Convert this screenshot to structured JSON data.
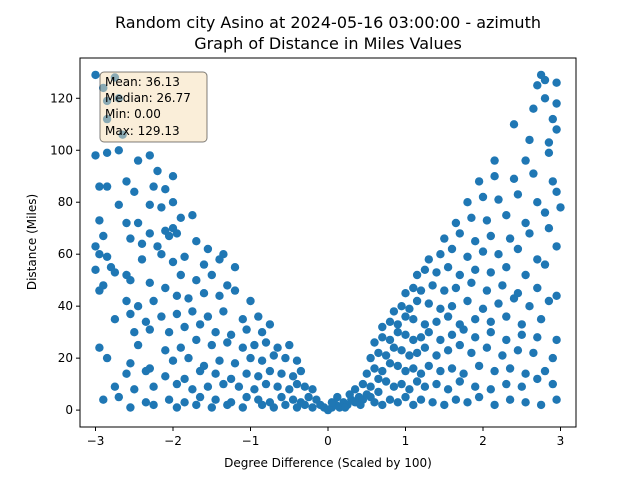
{
  "chart_data": {
    "type": "scatter",
    "title_line1": "Random city Asino at 2024-05-16 03:00:00  - azimuth",
    "title_line2": "Graph of Distance in Miles Values",
    "xlabel": "Degree Difference (Scaled by 100)",
    "ylabel": "Distance (Miles)",
    "xlim": [
      -3.2,
      3.2
    ],
    "ylim": [
      -6.5,
      135.5
    ],
    "xticks": [
      -3,
      -2,
      -1,
      0,
      1,
      2,
      3
    ],
    "yticks": [
      0,
      20,
      40,
      60,
      80,
      100,
      120
    ],
    "grid": false,
    "marker_color": "#1f77b4",
    "stats": {
      "mean": "Mean: 36.13",
      "median": "Median: 26.77",
      "min": "Min: 0.00",
      "max": "Max: 129.13"
    },
    "points": [
      [
        -3.0,
        129
      ],
      [
        -2.9,
        124
      ],
      [
        -2.85,
        119
      ],
      [
        -2.75,
        128
      ],
      [
        -2.7,
        120
      ],
      [
        -2.85,
        112
      ],
      [
        -2.65,
        106
      ],
      [
        -3.0,
        98
      ],
      [
        -2.85,
        99
      ],
      [
        -2.7,
        100
      ],
      [
        -2.45,
        96
      ],
      [
        -2.3,
        98
      ],
      [
        -2.2,
        92
      ],
      [
        -2.0,
        90
      ],
      [
        -2.95,
        86
      ],
      [
        -2.85,
        86
      ],
      [
        -2.6,
        88
      ],
      [
        -2.5,
        84
      ],
      [
        -2.25,
        86
      ],
      [
        -2.1,
        85
      ],
      [
        -2.0,
        80
      ],
      [
        -2.3,
        79
      ],
      [
        -2.15,
        78
      ],
      [
        -2.7,
        79
      ],
      [
        -2.95,
        73
      ],
      [
        -2.6,
        72
      ],
      [
        -2.45,
        72
      ],
      [
        -2.3,
        68
      ],
      [
        -2.1,
        69
      ],
      [
        -2.0,
        70
      ],
      [
        -1.9,
        74
      ],
      [
        -1.75,
        75
      ],
      [
        -2.9,
        67
      ],
      [
        -2.55,
        66
      ],
      [
        -2.4,
        64
      ],
      [
        -2.2,
        63
      ],
      [
        -2.05,
        67
      ],
      [
        -1.95,
        68
      ],
      [
        -1.7,
        65
      ],
      [
        -1.55,
        62
      ],
      [
        -1.35,
        60
      ],
      [
        -3.0,
        63
      ],
      [
        -2.95,
        60
      ],
      [
        -2.85,
        59
      ],
      [
        -2.8,
        55
      ],
      [
        -2.6,
        52
      ],
      [
        -2.4,
        58
      ],
      [
        -2.15,
        60
      ],
      [
        -2.0,
        57
      ],
      [
        -1.85,
        59
      ],
      [
        -1.6,
        56
      ],
      [
        -1.4,
        58
      ],
      [
        -1.2,
        55
      ],
      [
        -3.0,
        54
      ],
      [
        -2.9,
        48
      ],
      [
        -2.75,
        53
      ],
      [
        -2.55,
        50
      ],
      [
        -2.3,
        49
      ],
      [
        -2.1,
        47
      ],
      [
        -1.9,
        52
      ],
      [
        -1.7,
        50
      ],
      [
        -1.5,
        52
      ],
      [
        -1.3,
        48
      ],
      [
        -2.95,
        46
      ],
      [
        -2.6,
        42
      ],
      [
        -2.45,
        40
      ],
      [
        -2.25,
        42
      ],
      [
        -1.95,
        44
      ],
      [
        -1.8,
        43
      ],
      [
        -1.6,
        45
      ],
      [
        -1.4,
        44
      ],
      [
        -1.2,
        46
      ],
      [
        -1.0,
        42
      ],
      [
        -2.75,
        35
      ],
      [
        -2.55,
        37
      ],
      [
        -2.35,
        34
      ],
      [
        -2.15,
        36
      ],
      [
        -1.95,
        37
      ],
      [
        -1.75,
        38
      ],
      [
        -1.55,
        36
      ],
      [
        -1.35,
        38
      ],
      [
        -1.1,
        35
      ],
      [
        -0.9,
        36
      ],
      [
        -2.5,
        30
      ],
      [
        -2.3,
        31
      ],
      [
        -2.05,
        30
      ],
      [
        -1.85,
        32
      ],
      [
        -1.65,
        33
      ],
      [
        -1.45,
        30
      ],
      [
        -1.25,
        29
      ],
      [
        -1.05,
        31
      ],
      [
        -0.85,
        30
      ],
      [
        -0.75,
        33
      ],
      [
        -2.95,
        24
      ],
      [
        -2.45,
        25
      ],
      [
        -2.1,
        23
      ],
      [
        -1.9,
        24
      ],
      [
        -1.7,
        27
      ],
      [
        -1.5,
        25
      ],
      [
        -1.3,
        26
      ],
      [
        -1.1,
        24
      ],
      [
        -0.95,
        25
      ],
      [
        -0.8,
        26
      ],
      [
        -0.65,
        24
      ],
      [
        -0.5,
        25
      ],
      [
        -2.85,
        20
      ],
      [
        -2.55,
        18
      ],
      [
        -2.3,
        16
      ],
      [
        -2.0,
        19
      ],
      [
        -1.8,
        20
      ],
      [
        -1.6,
        17
      ],
      [
        -1.4,
        19
      ],
      [
        -1.2,
        18
      ],
      [
        -1.0,
        20
      ],
      [
        -0.85,
        19
      ],
      [
        -0.7,
        21
      ],
      [
        -0.55,
        20
      ],
      [
        -0.4,
        19
      ],
      [
        -2.6,
        14
      ],
      [
        -2.35,
        15
      ],
      [
        -2.1,
        13
      ],
      [
        -1.85,
        12
      ],
      [
        -1.65,
        15
      ],
      [
        -1.45,
        14
      ],
      [
        -1.25,
        12
      ],
      [
        -1.05,
        14
      ],
      [
        -0.9,
        13
      ],
      [
        -0.75,
        15
      ],
      [
        -0.6,
        14
      ],
      [
        -0.45,
        13
      ],
      [
        -0.35,
        15
      ],
      [
        -2.75,
        9
      ],
      [
        -2.5,
        8
      ],
      [
        -2.25,
        9
      ],
      [
        -1.95,
        10
      ],
      [
        -1.75,
        8
      ],
      [
        -1.55,
        9
      ],
      [
        -1.35,
        10
      ],
      [
        -1.15,
        9
      ],
      [
        -0.95,
        8
      ],
      [
        -0.8,
        10
      ],
      [
        -0.65,
        9
      ],
      [
        -0.5,
        8
      ],
      [
        -0.4,
        10
      ],
      [
        -0.3,
        9
      ],
      [
        -0.2,
        8
      ],
      [
        -2.9,
        4
      ],
      [
        -2.7,
        5
      ],
      [
        -2.35,
        3
      ],
      [
        -2.05,
        4
      ],
      [
        -1.85,
        3
      ],
      [
        -1.65,
        5
      ],
      [
        -1.45,
        4
      ],
      [
        -1.25,
        3
      ],
      [
        -1.05,
        5
      ],
      [
        -0.9,
        4
      ],
      [
        -0.75,
        3
      ],
      [
        -0.6,
        5
      ],
      [
        -0.45,
        4
      ],
      [
        -0.35,
        3
      ],
      [
        -0.25,
        5
      ],
      [
        -0.15,
        4
      ],
      [
        -2.55,
        1
      ],
      [
        -2.25,
        2
      ],
      [
        -1.95,
        1
      ],
      [
        -1.7,
        2
      ],
      [
        -1.5,
        1
      ],
      [
        -1.3,
        2
      ],
      [
        -1.1,
        1
      ],
      [
        -0.85,
        2
      ],
      [
        -0.7,
        1
      ],
      [
        -0.55,
        2
      ],
      [
        -0.4,
        1
      ],
      [
        -0.3,
        2
      ],
      [
        -0.2,
        1
      ],
      [
        -0.1,
        2
      ],
      [
        -0.05,
        1
      ],
      [
        0.0,
        0
      ],
      [
        0.05,
        1
      ],
      [
        0.1,
        2
      ],
      [
        0.15,
        1
      ],
      [
        0.2,
        3
      ],
      [
        0.25,
        2
      ],
      [
        0.3,
        4
      ],
      [
        0.35,
        3
      ],
      [
        0.4,
        5
      ],
      [
        0.45,
        4
      ],
      [
        0.5,
        6
      ],
      [
        0.55,
        5
      ],
      [
        0.6,
        3
      ],
      [
        0.65,
        7
      ],
      [
        0.7,
        2
      ],
      [
        0.8,
        4
      ],
      [
        0.9,
        3
      ],
      [
        1.0,
        5
      ],
      [
        1.1,
        2
      ],
      [
        1.2,
        4
      ],
      [
        1.35,
        3
      ],
      [
        1.5,
        2
      ],
      [
        1.65,
        4
      ],
      [
        1.8,
        3
      ],
      [
        1.95,
        5
      ],
      [
        2.15,
        2
      ],
      [
        2.35,
        4
      ],
      [
        2.55,
        3
      ],
      [
        2.75,
        2
      ],
      [
        2.95,
        4
      ],
      [
        0.35,
        8
      ],
      [
        0.45,
        10
      ],
      [
        0.55,
        9
      ],
      [
        0.65,
        12
      ],
      [
        0.75,
        11
      ],
      [
        0.85,
        9
      ],
      [
        0.95,
        10
      ],
      [
        1.05,
        8
      ],
      [
        1.15,
        11
      ],
      [
        1.25,
        9
      ],
      [
        1.4,
        10
      ],
      [
        1.55,
        8
      ],
      [
        1.7,
        11
      ],
      [
        1.9,
        9
      ],
      [
        2.1,
        8
      ],
      [
        2.3,
        10
      ],
      [
        2.5,
        9
      ],
      [
        2.7,
        12
      ],
      [
        2.9,
        10
      ],
      [
        0.5,
        14
      ],
      [
        0.6,
        16
      ],
      [
        0.7,
        15
      ],
      [
        0.8,
        18
      ],
      [
        0.9,
        17
      ],
      [
        1.0,
        15
      ],
      [
        1.1,
        16
      ],
      [
        1.2,
        14
      ],
      [
        1.3,
        17
      ],
      [
        1.45,
        15
      ],
      [
        1.6,
        16
      ],
      [
        1.75,
        14
      ],
      [
        1.95,
        17
      ],
      [
        2.15,
        15
      ],
      [
        2.35,
        16
      ],
      [
        2.55,
        14
      ],
      [
        2.8,
        15
      ],
      [
        0.55,
        20
      ],
      [
        0.65,
        22
      ],
      [
        0.75,
        21
      ],
      [
        0.85,
        24
      ],
      [
        0.95,
        23
      ],
      [
        1.05,
        21
      ],
      [
        1.15,
        22
      ],
      [
        1.25,
        24
      ],
      [
        1.4,
        21
      ],
      [
        1.55,
        23
      ],
      [
        1.7,
        25
      ],
      [
        1.85,
        22
      ],
      [
        2.05,
        24
      ],
      [
        2.25,
        21
      ],
      [
        2.45,
        23
      ],
      [
        2.65,
        22
      ],
      [
        2.9,
        20
      ],
      [
        0.6,
        26
      ],
      [
        0.7,
        28
      ],
      [
        0.8,
        27
      ],
      [
        0.9,
        30
      ],
      [
        1.0,
        29
      ],
      [
        1.1,
        27
      ],
      [
        1.2,
        28
      ],
      [
        1.3,
        30
      ],
      [
        1.45,
        27
      ],
      [
        1.6,
        29
      ],
      [
        1.75,
        31
      ],
      [
        1.9,
        28
      ],
      [
        2.1,
        30
      ],
      [
        2.3,
        27
      ],
      [
        2.5,
        29
      ],
      [
        2.7,
        28
      ],
      [
        2.95,
        27
      ],
      [
        0.7,
        32
      ],
      [
        0.8,
        34
      ],
      [
        0.9,
        33
      ],
      [
        1.0,
        36
      ],
      [
        1.1,
        35
      ],
      [
        1.25,
        33
      ],
      [
        1.4,
        34
      ],
      [
        1.55,
        36
      ],
      [
        1.7,
        33
      ],
      [
        1.9,
        35
      ],
      [
        2.1,
        34
      ],
      [
        2.3,
        36
      ],
      [
        2.5,
        33
      ],
      [
        2.75,
        35
      ],
      [
        0.85,
        38
      ],
      [
        0.95,
        40
      ],
      [
        1.05,
        39
      ],
      [
        1.15,
        42
      ],
      [
        1.3,
        41
      ],
      [
        1.45,
        39
      ],
      [
        1.6,
        40
      ],
      [
        1.8,
        42
      ],
      [
        2.0,
        39
      ],
      [
        2.2,
        41
      ],
      [
        2.4,
        43
      ],
      [
        2.6,
        40
      ],
      [
        2.85,
        42
      ],
      [
        1.0,
        45
      ],
      [
        1.1,
        47
      ],
      [
        1.2,
        46
      ],
      [
        1.35,
        48
      ],
      [
        1.5,
        46
      ],
      [
        1.65,
        47
      ],
      [
        1.85,
        49
      ],
      [
        2.05,
        46
      ],
      [
        2.25,
        48
      ],
      [
        2.45,
        45
      ],
      [
        2.7,
        47
      ],
      [
        2.95,
        44
      ],
      [
        1.15,
        52
      ],
      [
        1.25,
        54
      ],
      [
        1.4,
        53
      ],
      [
        1.55,
        55
      ],
      [
        1.7,
        52
      ],
      [
        1.9,
        54
      ],
      [
        2.1,
        53
      ],
      [
        2.3,
        55
      ],
      [
        2.55,
        52
      ],
      [
        2.8,
        56
      ],
      [
        1.3,
        58
      ],
      [
        1.45,
        60
      ],
      [
        1.6,
        62
      ],
      [
        1.8,
        59
      ],
      [
        2.0,
        61
      ],
      [
        2.2,
        60
      ],
      [
        2.45,
        62
      ],
      [
        2.7,
        58
      ],
      [
        2.95,
        63
      ],
      [
        1.5,
        66
      ],
      [
        1.7,
        68
      ],
      [
        1.9,
        65
      ],
      [
        2.1,
        67
      ],
      [
        2.35,
        66
      ],
      [
        2.6,
        68
      ],
      [
        2.85,
        70
      ],
      [
        1.65,
        72
      ],
      [
        1.85,
        74
      ],
      [
        2.05,
        73
      ],
      [
        2.3,
        75
      ],
      [
        2.55,
        72
      ],
      [
        2.8,
        76
      ],
      [
        3.0,
        78
      ],
      [
        1.8,
        80
      ],
      [
        2.0,
        82
      ],
      [
        2.2,
        81
      ],
      [
        2.45,
        83
      ],
      [
        2.7,
        80
      ],
      [
        2.95,
        84
      ],
      [
        1.95,
        88
      ],
      [
        2.15,
        90
      ],
      [
        2.4,
        89
      ],
      [
        2.65,
        91
      ],
      [
        2.9,
        88
      ],
      [
        2.15,
        96
      ],
      [
        2.55,
        96
      ],
      [
        2.85,
        99
      ],
      [
        2.6,
        104
      ],
      [
        2.85,
        103
      ],
      [
        2.9,
        112
      ],
      [
        2.95,
        108
      ],
      [
        2.4,
        110
      ],
      [
        2.65,
        116
      ],
      [
        2.8,
        120
      ],
      [
        2.95,
        118
      ],
      [
        2.7,
        125
      ],
      [
        2.95,
        126
      ],
      [
        2.75,
        129
      ],
      [
        2.8,
        127
      ],
      [
        0.05,
        3
      ],
      [
        0.12,
        5
      ],
      [
        0.22,
        1
      ],
      [
        0.28,
        6
      ],
      [
        0.42,
        2
      ]
    ]
  }
}
